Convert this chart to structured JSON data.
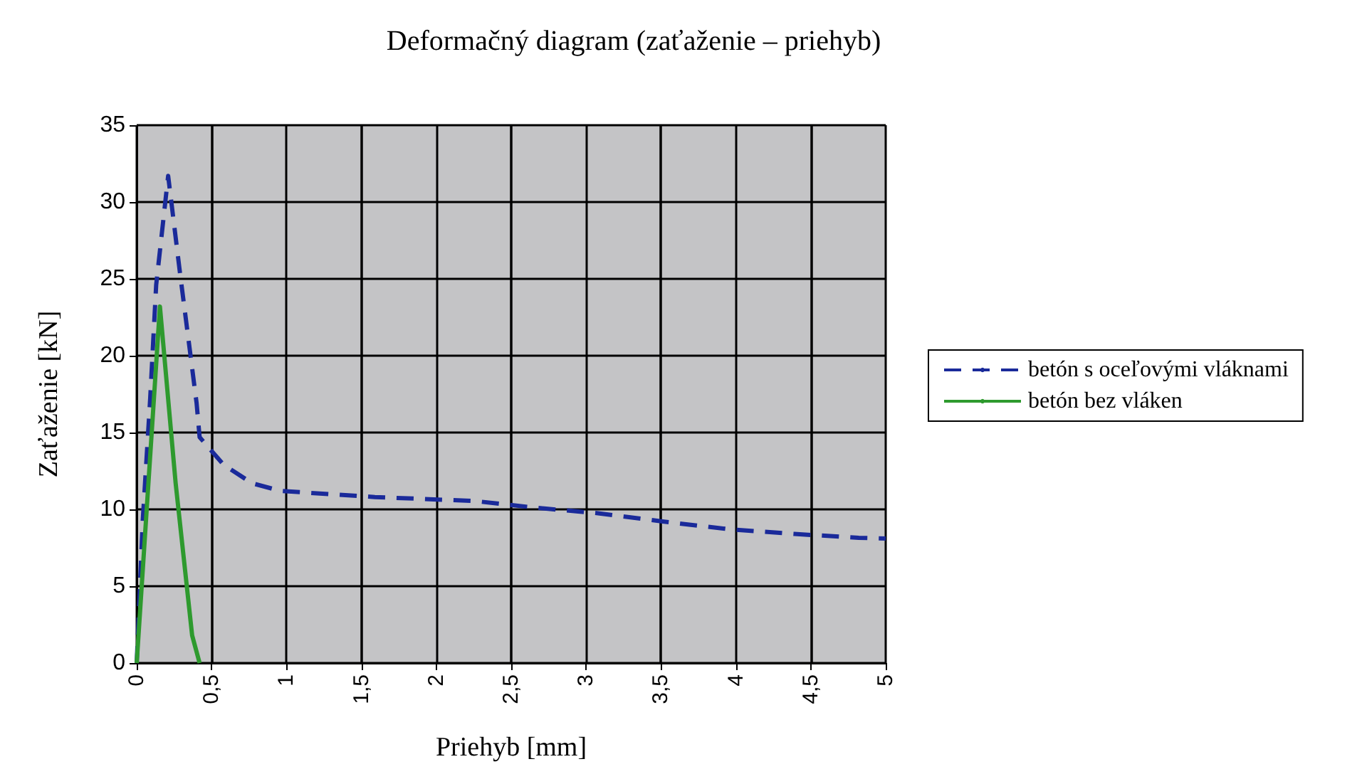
{
  "chart_data": {
    "type": "line",
    "title": "Deformačný diagram (zaťaženie – priehyb)",
    "xlabel": "Priehyb [mm]",
    "ylabel": "Zaťaženie [kN]",
    "series": [
      {
        "name": "betón s oceľovými vláknami",
        "color": "#1a2a9a",
        "line_style": "dashed",
        "x": [
          0,
          0.04,
          0.09,
          0.13,
          0.21,
          0.29,
          0.4,
          0.42,
          0.58,
          0.77,
          0.96,
          1.59,
          2.25,
          2.67,
          3.08,
          3.52,
          3.96,
          4.39,
          4.82,
          5
        ],
        "values": [
          0,
          9.2,
          17.2,
          24.6,
          31.7,
          25.3,
          16.9,
          14.7,
          12.9,
          11.7,
          11.2,
          10.8,
          10.55,
          10.1,
          9.75,
          9.2,
          8.7,
          8.4,
          8.15,
          8.1
        ]
      },
      {
        "name": "betón bez vláken",
        "color": "#2e9a2e",
        "line_style": "solid",
        "x": [
          0,
          0.155,
          0.26,
          0.37,
          0.42
        ],
        "values": [
          0,
          23.2,
          11.7,
          1.8,
          0
        ]
      }
    ],
    "xlim": [
      0,
      5
    ],
    "xticks": [
      0,
      {
        "value": 0.5,
        "label": "0,5"
      },
      1,
      {
        "value": 1.5,
        "label": "1,5"
      },
      2,
      {
        "value": 2.5,
        "label": "2,5"
      },
      3,
      {
        "value": 3.5,
        "label": "3,5"
      },
      4,
      {
        "value": 4.5,
        "label": "4,5"
      },
      5
    ],
    "ylim": [
      0,
      35
    ],
    "yticks": [
      0,
      5,
      10,
      15,
      20,
      25,
      30,
      35
    ],
    "grid": true,
    "legend": "right",
    "marker": "none"
  }
}
